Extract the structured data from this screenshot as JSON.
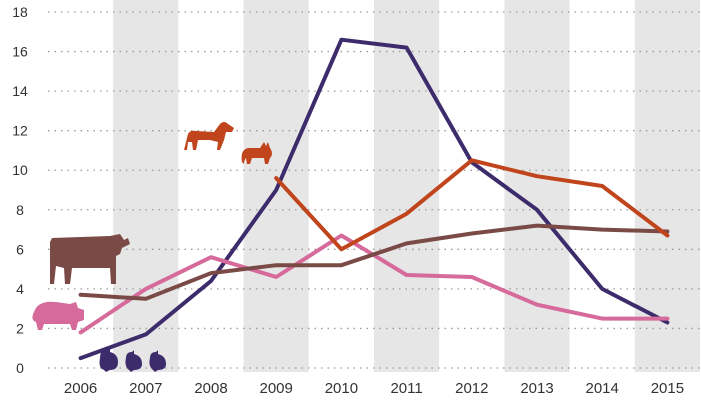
{
  "chart_data": {
    "type": "line",
    "title": "",
    "xlabel": "",
    "ylabel": "",
    "categories": [
      "2006",
      "2007",
      "2008",
      "2009",
      "2010",
      "2011",
      "2012",
      "2013",
      "2014",
      "2015"
    ],
    "ylim": [
      0,
      18
    ],
    "yticks": [
      0,
      2,
      4,
      6,
      8,
      10,
      12,
      14,
      16,
      18
    ],
    "grid": "horizontal dotted, alternating vertical year bands",
    "legend": "icon labels placed next to series starts (poultry, pig, cattle, dog and cat)",
    "series": [
      {
        "icon": "poultry-icon",
        "color": "#3d2c6b",
        "values": [
          0.5,
          1.7,
          4.4,
          9.0,
          16.6,
          16.2,
          10.4,
          8.0,
          4.0,
          2.3
        ]
      },
      {
        "icon": "pig-icon",
        "color": "#d66a9b",
        "values": [
          1.8,
          4.0,
          5.6,
          4.6,
          6.7,
          4.7,
          4.6,
          3.2,
          2.5,
          2.5
        ]
      },
      {
        "icon": "cattle-icon",
        "color": "#7a4a47",
        "values": [
          3.7,
          3.5,
          4.8,
          5.2,
          5.2,
          6.3,
          6.8,
          7.2,
          7.0,
          6.9
        ]
      },
      {
        "icon": "dog-cat-icon",
        "color": "#c0441c",
        "values": [
          null,
          null,
          null,
          9.6,
          6.0,
          7.8,
          10.5,
          9.7,
          9.2,
          6.7
        ]
      }
    ]
  }
}
